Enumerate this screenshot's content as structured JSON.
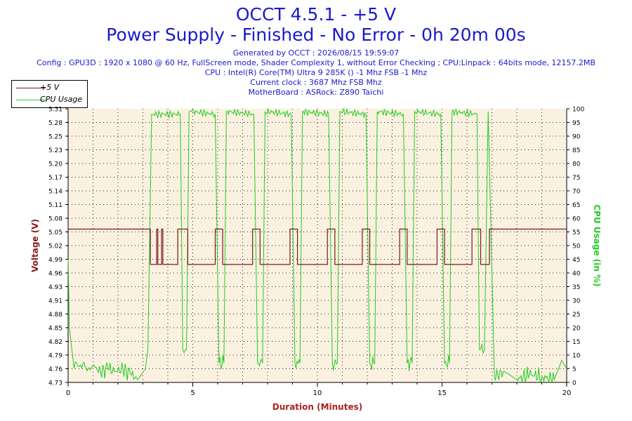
{
  "header": {
    "title": "OCCT 4.5.1 - +5 V",
    "subtitle": "Power Supply - Finished - No Error - 0h 20m 00s",
    "generated": "Generated by OCCT : 2026/08/15 19:59:07",
    "config": "Config : GPU3D : 1920 x 1080 @ 60 Hz, FullScreen mode, Shader Complexity 1, without Error Checking ; CPU:Linpack : 64bits mode, 12157.2MB",
    "cpu": "CPU : Intel(R) Core(TM) Ultra 9 285K () -1 Mhz FSB -1 Mhz",
    "clock": "Current clock : 3687 Mhz FSB  Mhz",
    "motherboard": "MotherBoard : ASRock: Z890 Taichi"
  },
  "legend": {
    "items": [
      {
        "label": "+5 V",
        "color": "#7a1a1a"
      },
      {
        "label": "CPU Usage",
        "color": "#22cc22"
      }
    ]
  },
  "colors": {
    "title": "#1a1acc",
    "voltage": "#7a1a1a",
    "cpu": "#22cc22",
    "plot_bg": "#fbf1e0",
    "axis_left_label": "#8b1a1a",
    "axis_right_label": "#22cc22",
    "axis_bottom_label": "#aa2222"
  },
  "chart_data": {
    "type": "line",
    "xlabel": "Duration (Minutes)",
    "ylabel": "Voltage (V)",
    "y2label": "CPU Usage (in %)",
    "xlim": [
      0,
      20
    ],
    "ylim": [
      4.73,
      5.31
    ],
    "y2lim": [
      0,
      100
    ],
    "xticks": [
      0,
      5,
      10,
      15,
      20
    ],
    "yticks": [
      "4.73",
      "4.76",
      "4.79",
      "4.82",
      "4.85",
      "4.88",
      "4.91",
      "4.93",
      "4.96",
      "4.99",
      "5.02",
      "5.05",
      "5.08",
      "5.11",
      "5.14",
      "5.17",
      "5.20",
      "5.23",
      "5.25",
      "5.28",
      "5.31"
    ],
    "y2ticks": [
      0,
      5,
      10,
      15,
      20,
      25,
      30,
      35,
      40,
      45,
      50,
      55,
      60,
      65,
      70,
      75,
      80,
      85,
      90,
      95,
      100
    ],
    "grid": true,
    "legend_position": "top-left",
    "series": [
      {
        "name": "+5 V",
        "x": [
          0,
          3.3,
          3.3,
          3.55,
          3.55,
          3.6,
          3.6,
          3.75,
          3.75,
          3.8,
          3.8,
          4.4,
          4.4,
          4.8,
          4.8,
          5.9,
          5.9,
          6.2,
          6.2,
          7.4,
          7.4,
          7.7,
          7.7,
          8.9,
          8.9,
          9.2,
          9.2,
          10.4,
          10.4,
          10.7,
          10.7,
          11.8,
          11.8,
          12.1,
          12.1,
          13.3,
          13.3,
          13.6,
          13.6,
          14.8,
          14.8,
          15.1,
          15.1,
          16.2,
          16.2,
          16.55,
          16.55,
          16.9,
          16.9,
          20
        ],
        "y": [
          5.055,
          5.055,
          4.98,
          4.98,
          5.055,
          5.055,
          4.98,
          4.98,
          5.055,
          5.055,
          4.98,
          4.98,
          5.055,
          5.055,
          4.98,
          4.98,
          5.055,
          5.055,
          4.98,
          4.98,
          5.055,
          5.055,
          4.98,
          4.98,
          5.055,
          5.055,
          4.98,
          4.98,
          5.055,
          5.055,
          4.98,
          4.98,
          5.055,
          5.055,
          4.98,
          4.98,
          5.055,
          5.055,
          4.98,
          4.98,
          5.055,
          5.055,
          4.98,
          4.98,
          5.055,
          5.055,
          4.98,
          4.98,
          5.055,
          5.055
        ]
      },
      {
        "name": "CPU Usage",
        "x": [
          0,
          0.05,
          0.2,
          0.4,
          0.6,
          0.8,
          1.0,
          1.3,
          1.6,
          1.9,
          2.2,
          2.5,
          2.8,
          3.1,
          3.2,
          3.35,
          4.5,
          4.6,
          4.75,
          4.85,
          4.95,
          5.9,
          6.05,
          6.25,
          6.35,
          7.45,
          7.6,
          7.8,
          7.9,
          8.95,
          9.1,
          9.3,
          9.4,
          10.45,
          10.6,
          10.8,
          10.9,
          11.95,
          12.1,
          12.3,
          12.4,
          13.45,
          13.6,
          13.8,
          13.9,
          14.95,
          15.1,
          15.3,
          15.4,
          16.4,
          16.5,
          16.7,
          16.85,
          17.1,
          17.5,
          18.0,
          18.5,
          19.0,
          19.5,
          19.8,
          20
        ],
        "y": [
          45,
          20,
          8,
          6,
          7,
          5,
          6,
          4,
          5,
          4,
          5,
          3,
          1,
          5,
          12,
          98,
          98,
          12,
          12,
          99,
          99,
          98,
          7,
          7,
          99,
          98,
          7,
          7,
          99,
          98,
          7,
          7,
          99,
          98,
          7,
          7,
          99,
          98,
          7,
          7,
          99,
          98,
          7,
          7,
          99,
          98,
          7,
          7,
          99,
          98,
          12,
          12,
          99,
          2,
          4,
          1,
          3,
          2,
          1,
          8,
          5
        ]
      }
    ]
  }
}
